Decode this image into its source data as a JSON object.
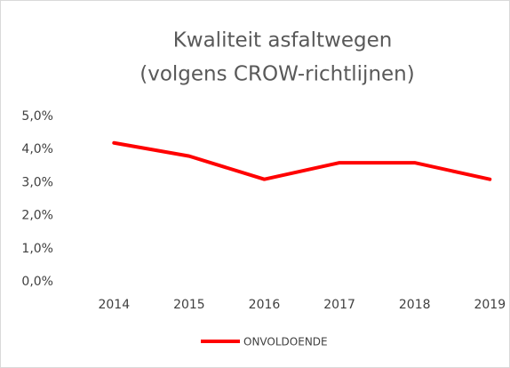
{
  "chart_data": {
    "type": "line",
    "title": [
      "Kwaliteit asfaltwegen",
      "(volgens CROW-richtlijnen)"
    ],
    "categories": [
      "2014",
      "2015",
      "2016",
      "2017",
      "2018",
      "2019"
    ],
    "series": [
      {
        "name": "ONVOLDOENDE",
        "color": "#ff0000",
        "values": [
          4.2,
          3.8,
          3.1,
          3.6,
          3.6,
          3.1
        ]
      }
    ],
    "ylim": [
      0,
      5
    ],
    "yticks": [
      {
        "value": 0,
        "label": "0,0%"
      },
      {
        "value": 1,
        "label": "1,0%"
      },
      {
        "value": 2,
        "label": "2,0%"
      },
      {
        "value": 3,
        "label": "3,0%"
      },
      {
        "value": 4,
        "label": "4,0%"
      },
      {
        "value": 5,
        "label": "5,0%"
      }
    ],
    "grid": false,
    "legend": "bottom"
  }
}
